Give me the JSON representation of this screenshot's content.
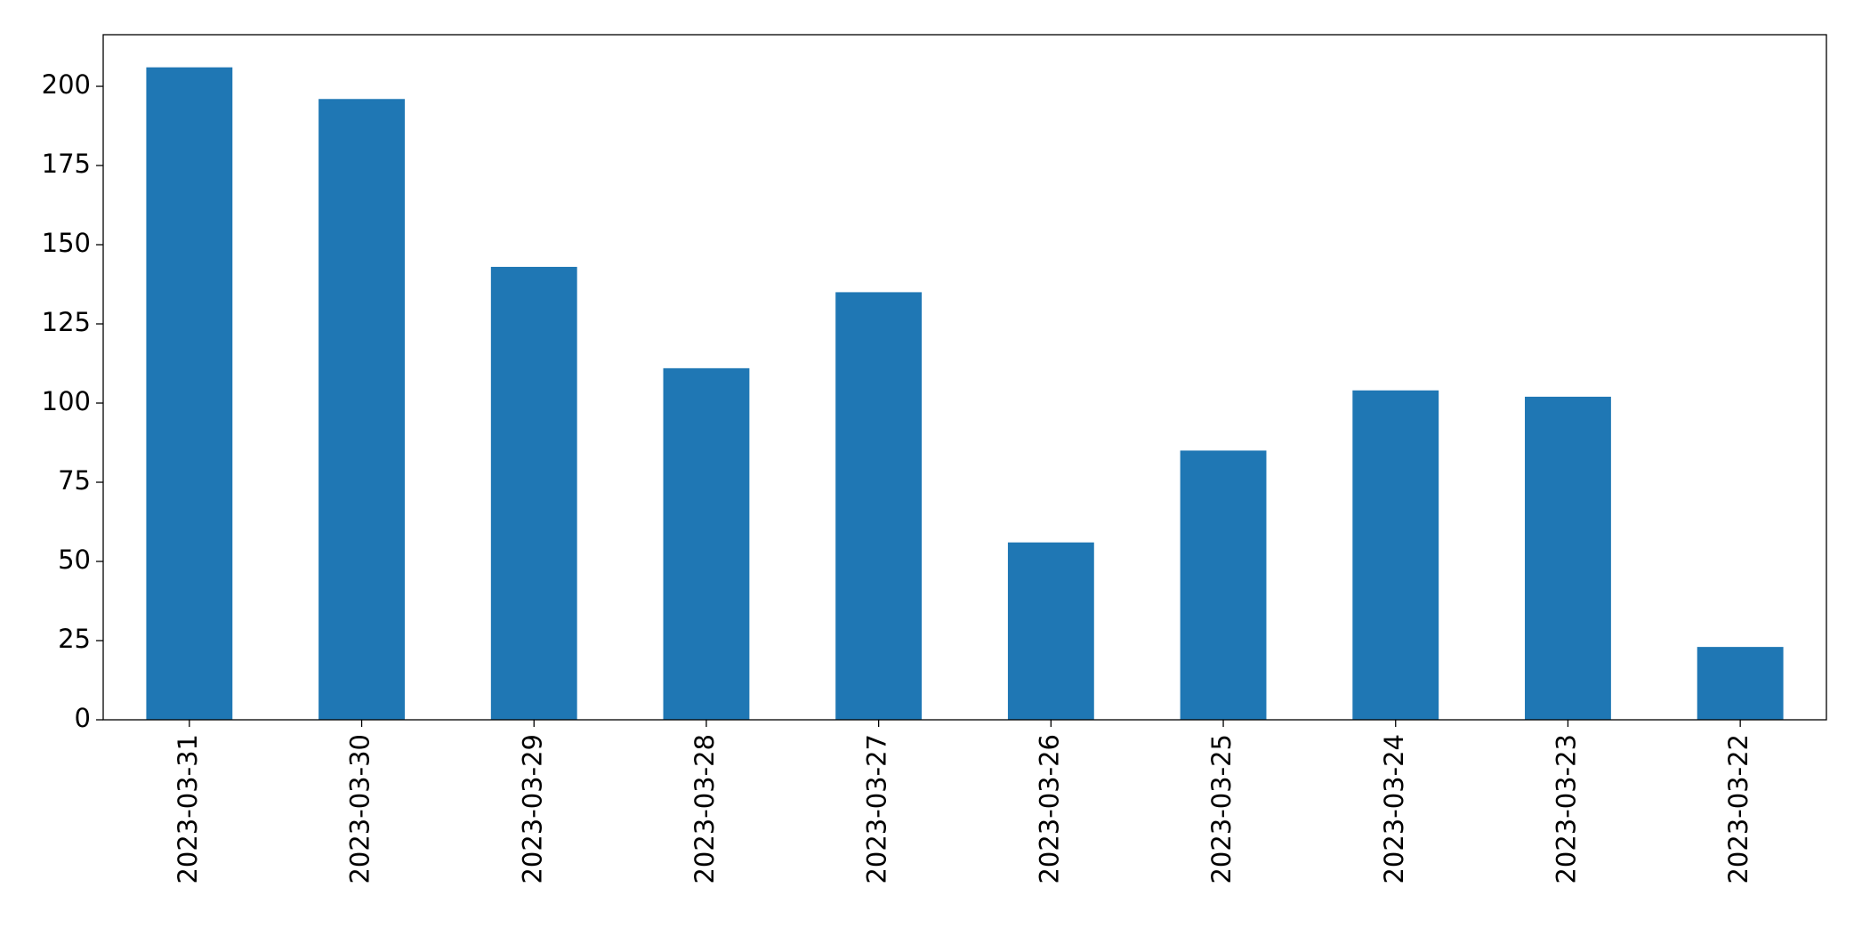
{
  "chart_data": {
    "type": "bar",
    "categories": [
      "2023-03-31",
      "2023-03-30",
      "2023-03-29",
      "2023-03-28",
      "2023-03-27",
      "2023-03-26",
      "2023-03-25",
      "2023-03-24",
      "2023-03-23",
      "2023-03-22"
    ],
    "values": [
      206,
      196,
      143,
      111,
      135,
      56,
      85,
      104,
      102,
      23
    ],
    "color": "#1f77b4",
    "ylim": [
      0,
      216.3
    ],
    "yticks": [
      0,
      25,
      50,
      75,
      100,
      125,
      150,
      175,
      200
    ],
    "grid": false
  }
}
